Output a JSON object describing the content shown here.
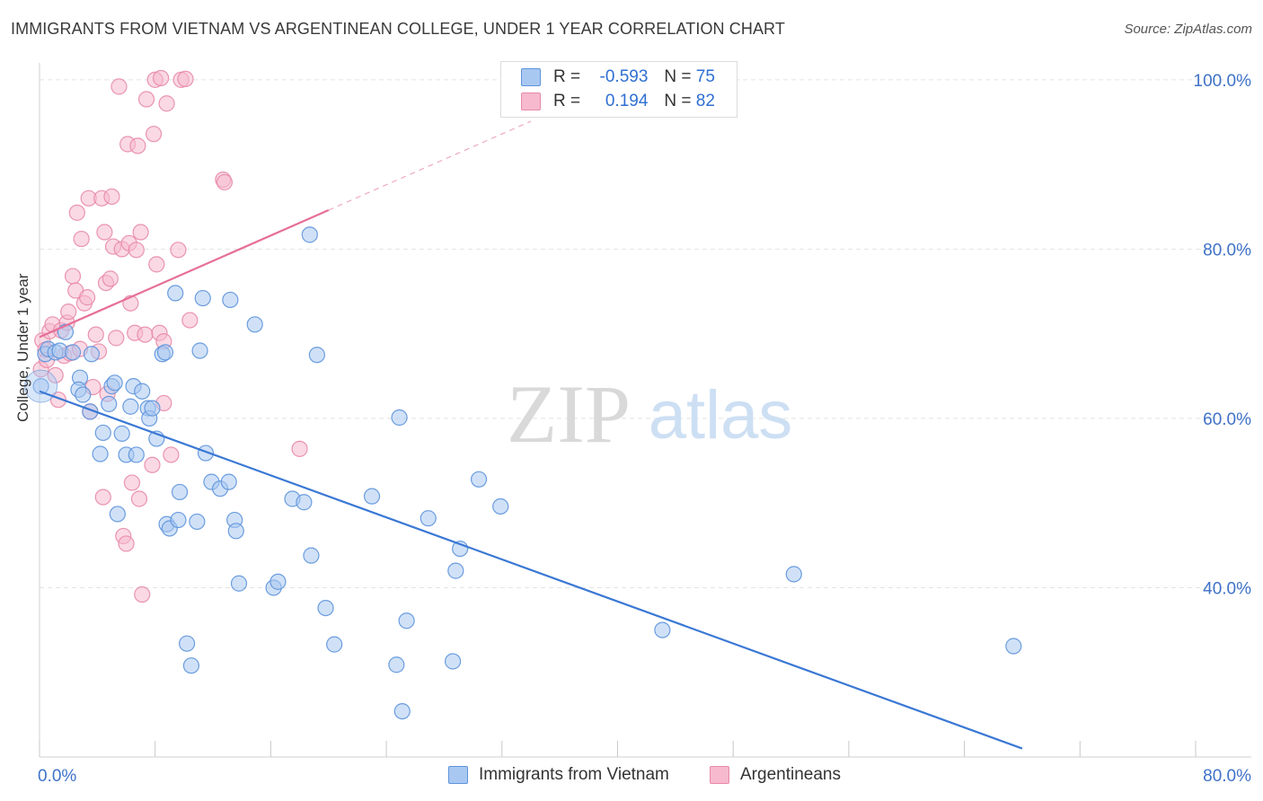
{
  "title": "IMMIGRANTS FROM VIETNAM VS ARGENTINEAN COLLEGE, UNDER 1 YEAR CORRELATION CHART",
  "source": "Source: ZipAtlas.com",
  "watermark": {
    "zip": "ZIP",
    "atlas": "atlas"
  },
  "colors": {
    "blue_fill": "#a9c8f1",
    "blue_stroke": "#5d93dc",
    "blue_line": "#3a78d4",
    "pink_fill": "#f6b9ce",
    "pink_stroke": "#e889a8",
    "pink_line": "#e66f97",
    "axis_text": "#3f72c8",
    "grid": "#e3e3e3"
  },
  "stats": {
    "series1": {
      "r_label": "R =",
      "r_value": "-0.593",
      "n_label": "N =",
      "n_value": "75"
    },
    "series2": {
      "r_label": "R =",
      "r_value": "0.194",
      "n_label": "N =",
      "n_value": "82"
    }
  },
  "legend": {
    "series1": "Immigrants from Vietnam",
    "series2": "Argentineans"
  },
  "chart_data": {
    "type": "scatter",
    "title": "IMMIGRANTS FROM VIETNAM VS ARGENTINEAN COLLEGE, UNDER 1 YEAR CORRELATION CHART",
    "xlabel": "",
    "ylabel": "College, Under 1 year",
    "xlim": [
      0,
      80
    ],
    "ylim": [
      20,
      102
    ],
    "x_tick_labels": [
      "0.0%",
      "80.0%"
    ],
    "y_ticks": [
      40,
      60,
      80,
      100
    ],
    "y_tick_labels": [
      "40.0%",
      "60.0%",
      "80.0%",
      "100.0%"
    ],
    "grid": true,
    "legend_position": "bottom",
    "series": [
      {
        "name": "Immigrants from Vietnam",
        "color": "#a9c8f1",
        "trend": {
          "x": [
            0,
            68
          ],
          "y": [
            63.2,
            21.0
          ],
          "dashed_extension": false
        },
        "points": [
          [
            0.1,
            63.8
          ],
          [
            0.4,
            67.6
          ],
          [
            0.6,
            68.2
          ],
          [
            1.1,
            67.8
          ],
          [
            1.4,
            68.0
          ],
          [
            1.8,
            70.2
          ],
          [
            2.3,
            67.8
          ],
          [
            2.8,
            64.8
          ],
          [
            2.7,
            63.4
          ],
          [
            3.0,
            62.8
          ],
          [
            3.5,
            60.8
          ],
          [
            3.6,
            67.6
          ],
          [
            4.2,
            55.8
          ],
          [
            4.4,
            58.3
          ],
          [
            4.8,
            61.7
          ],
          [
            5.0,
            63.8
          ],
          [
            5.2,
            64.2
          ],
          [
            5.4,
            48.7
          ],
          [
            5.7,
            58.2
          ],
          [
            6.0,
            55.7
          ],
          [
            6.3,
            61.4
          ],
          [
            6.5,
            63.8
          ],
          [
            6.7,
            55.7
          ],
          [
            7.1,
            63.2
          ],
          [
            7.5,
            61.2
          ],
          [
            7.6,
            60.0
          ],
          [
            7.8,
            61.2
          ],
          [
            8.1,
            57.6
          ],
          [
            8.5,
            67.6
          ],
          [
            8.7,
            67.8
          ],
          [
            8.8,
            47.5
          ],
          [
            9.0,
            47.0
          ],
          [
            9.4,
            74.8
          ],
          [
            9.7,
            51.3
          ],
          [
            9.6,
            48.0
          ],
          [
            10.2,
            33.4
          ],
          [
            10.5,
            30.8
          ],
          [
            10.9,
            47.8
          ],
          [
            11.1,
            68.0
          ],
          [
            11.3,
            74.2
          ],
          [
            11.5,
            55.9
          ],
          [
            11.9,
            52.5
          ],
          [
            12.5,
            51.7
          ],
          [
            13.1,
            52.5
          ],
          [
            13.2,
            74.0
          ],
          [
            13.5,
            48.0
          ],
          [
            13.6,
            46.7
          ],
          [
            13.8,
            40.5
          ],
          [
            14.9,
            71.1
          ],
          [
            16.2,
            40.0
          ],
          [
            16.5,
            40.7
          ],
          [
            17.5,
            50.5
          ],
          [
            18.3,
            50.1
          ],
          [
            18.7,
            81.7
          ],
          [
            18.8,
            43.8
          ],
          [
            19.2,
            67.5
          ],
          [
            19.8,
            37.6
          ],
          [
            20.4,
            33.3
          ],
          [
            23.0,
            50.8
          ],
          [
            24.7,
            30.9
          ],
          [
            24.9,
            60.1
          ],
          [
            25.1,
            25.4
          ],
          [
            25.4,
            36.1
          ],
          [
            26.9,
            48.2
          ],
          [
            28.6,
            31.3
          ],
          [
            28.8,
            42.0
          ],
          [
            29.1,
            44.6
          ],
          [
            30.4,
            52.8
          ],
          [
            31.9,
            49.6
          ],
          [
            43.1,
            35.0
          ],
          [
            52.2,
            41.6
          ],
          [
            67.4,
            33.1
          ]
        ]
      },
      {
        "name": "Argentineans",
        "color": "#f6b9ce",
        "trend": {
          "x": [
            0,
            20
          ],
          "y": [
            69.6,
            84.6
          ],
          "dashed_extension": true
        },
        "points": [
          [
            0.1,
            65.8
          ],
          [
            0.2,
            69.2
          ],
          [
            0.4,
            68.1
          ],
          [
            0.5,
            66.9
          ],
          [
            0.7,
            70.3
          ],
          [
            0.9,
            71.1
          ],
          [
            1.1,
            65.1
          ],
          [
            1.3,
            62.2
          ],
          [
            1.5,
            70.4
          ],
          [
            1.7,
            67.4
          ],
          [
            1.9,
            71.3
          ],
          [
            2.0,
            72.6
          ],
          [
            2.1,
            67.7
          ],
          [
            2.3,
            76.8
          ],
          [
            2.5,
            75.1
          ],
          [
            2.6,
            84.3
          ],
          [
            2.8,
            68.2
          ],
          [
            2.9,
            81.2
          ],
          [
            3.1,
            73.6
          ],
          [
            3.3,
            74.3
          ],
          [
            3.4,
            86.0
          ],
          [
            3.5,
            60.8
          ],
          [
            3.7,
            63.7
          ],
          [
            3.9,
            69.9
          ],
          [
            4.1,
            67.9
          ],
          [
            4.3,
            86.0
          ],
          [
            4.4,
            50.7
          ],
          [
            4.5,
            82.0
          ],
          [
            4.6,
            76.0
          ],
          [
            4.7,
            62.9
          ],
          [
            4.9,
            76.5
          ],
          [
            5.0,
            86.2
          ],
          [
            5.1,
            80.3
          ],
          [
            5.3,
            69.5
          ],
          [
            5.5,
            99.2
          ],
          [
            5.7,
            80.0
          ],
          [
            5.8,
            46.1
          ],
          [
            6.0,
            45.2
          ],
          [
            6.1,
            92.4
          ],
          [
            6.2,
            80.7
          ],
          [
            6.3,
            73.6
          ],
          [
            6.4,
            52.4
          ],
          [
            6.6,
            70.1
          ],
          [
            6.7,
            79.9
          ],
          [
            6.8,
            92.2
          ],
          [
            6.9,
            50.5
          ],
          [
            7.0,
            82.0
          ],
          [
            7.1,
            39.2
          ],
          [
            7.3,
            69.9
          ],
          [
            7.4,
            97.7
          ],
          [
            7.8,
            54.5
          ],
          [
            7.9,
            93.6
          ],
          [
            8.0,
            100.0
          ],
          [
            8.1,
            78.2
          ],
          [
            8.3,
            70.1
          ],
          [
            8.4,
            100.2
          ],
          [
            8.6,
            69.1
          ],
          [
            8.6,
            61.8
          ],
          [
            8.8,
            97.2
          ],
          [
            9.1,
            55.7
          ],
          [
            9.6,
            79.9
          ],
          [
            9.8,
            100.0
          ],
          [
            10.1,
            100.1
          ],
          [
            10.4,
            71.6
          ],
          [
            12.7,
            88.2
          ],
          [
            12.8,
            87.9
          ],
          [
            18.0,
            56.4
          ]
        ]
      }
    ]
  }
}
